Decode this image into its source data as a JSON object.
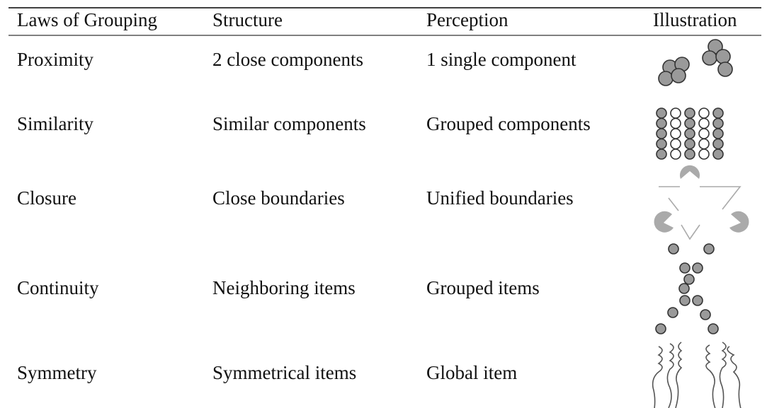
{
  "table": {
    "header": [
      "Laws of Grouping",
      "Structure",
      "Perception",
      "Illustration"
    ],
    "rows": [
      [
        "Proximity",
        "2 close components",
        "1 single component"
      ],
      [
        "Similarity",
        "Similar components",
        "Grouped components"
      ],
      [
        "Closure",
        "Close boundaries",
        "Unified boundaries"
      ],
      [
        "Continuity",
        "Neighboring items",
        "Grouped items"
      ],
      [
        "Symmetry",
        "Symmetrical items",
        "Global item"
      ]
    ]
  }
}
